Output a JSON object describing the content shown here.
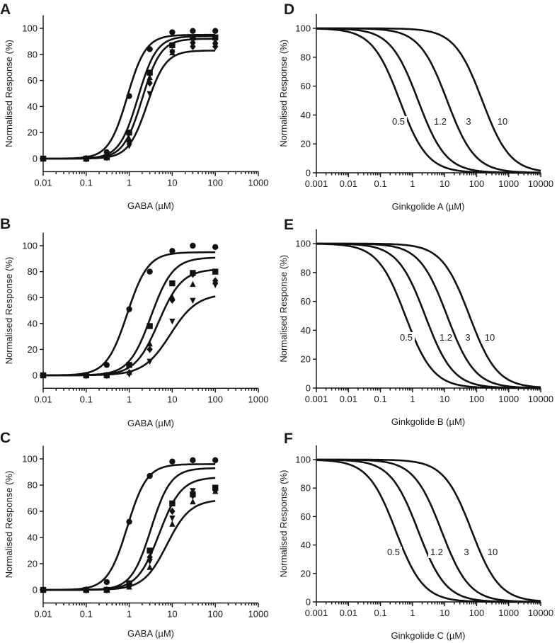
{
  "chart_data": [
    {
      "panel": "A",
      "type": "scatter",
      "xscale": "log",
      "xlabel": "GABA (µM)",
      "ylabel": "Normalised Response (%)",
      "xlim": [
        0.01,
        1000
      ],
      "ylim": [
        -10,
        110
      ],
      "xticks": [
        "0.01",
        "0.1",
        "1",
        "10",
        "100",
        "1000"
      ],
      "yticks": [
        "0",
        "20",
        "40",
        "60",
        "80",
        "100"
      ],
      "x": [
        0.01,
        0.1,
        0.3,
        1,
        3,
        10,
        30,
        100
      ],
      "series": [
        {
          "name": "circle",
          "marker": "circle",
          "values": [
            0,
            0,
            5,
            48,
            84,
            97,
            98,
            98
          ],
          "fit": {
            "ec50": 0.9,
            "hill": 2.0,
            "top": 95
          }
        },
        {
          "name": "square",
          "marker": "square",
          "values": [
            0,
            0,
            1,
            20,
            66,
            87,
            93,
            93
          ],
          "fit": {
            "ec50": 1.6,
            "hill": 2.0,
            "top": 94
          }
        },
        {
          "name": "triangle-up",
          "marker": "triangle-up",
          "values": [
            0,
            0,
            1,
            15,
            62,
            81,
            90,
            90
          ],
          "fit": {
            "ec50": 2.0,
            "hill": 2.0,
            "top": 92
          }
        },
        {
          "name": "triangle-down",
          "marker": "triangle-down",
          "values": [
            0,
            0,
            1,
            10,
            50,
            82,
            88,
            87
          ],
          "fit": {
            "ec50": 2.6,
            "hill": 2.0,
            "top": 83
          }
        },
        {
          "name": "diamond",
          "marker": "diamond",
          "values": [
            0,
            0,
            1,
            13,
            58,
            82,
            86,
            86
          ],
          "fit": null
        }
      ]
    },
    {
      "panel": "B",
      "type": "scatter",
      "xscale": "log",
      "xlabel": "GABA (µM)",
      "ylabel": "Normalised Response (%)",
      "xlim": [
        0.01,
        1000
      ],
      "ylim": [
        -10,
        110
      ],
      "xticks": [
        "0.01",
        "0.1",
        "1",
        "10",
        "100",
        "1000"
      ],
      "yticks": [
        "0",
        "20",
        "40",
        "60",
        "80",
        "100"
      ],
      "x": [
        0.01,
        0.1,
        0.3,
        1,
        3,
        10,
        30,
        100
      ],
      "series": [
        {
          "name": "circle",
          "marker": "circle",
          "values": [
            0,
            0,
            8,
            51,
            80,
            96,
            100,
            99
          ],
          "fit": {
            "ec50": 0.9,
            "hill": 1.8,
            "top": 95
          }
        },
        {
          "name": "square",
          "marker": "square",
          "values": [
            0,
            0,
            0,
            8,
            38,
            71,
            79,
            80
          ],
          "fit": {
            "ec50": 3.2,
            "hill": 1.7,
            "top": 91
          }
        },
        {
          "name": "triangle-up",
          "marker": "triangle-up",
          "values": [
            0,
            0,
            0,
            2,
            24,
            60,
            70,
            72
          ],
          "fit": {
            "ec50": 4.8,
            "hill": 1.6,
            "top": 82
          }
        },
        {
          "name": "triangle-down",
          "marker": "triangle-down",
          "values": [
            0,
            0,
            0,
            1,
            11,
            42,
            58,
            70
          ],
          "fit": {
            "ec50": 9,
            "hill": 1.4,
            "top": 63
          }
        },
        {
          "name": "diamond",
          "marker": "diamond",
          "values": [
            0,
            0,
            0,
            2,
            20,
            58,
            78,
            73
          ],
          "fit": null
        }
      ]
    },
    {
      "panel": "C",
      "type": "scatter",
      "xscale": "log",
      "xlabel": "GABA (µM)",
      "ylabel": "Normalised Response (%)",
      "xlim": [
        0.01,
        1000
      ],
      "ylim": [
        -10,
        110
      ],
      "xticks": [
        "0.01",
        "0.1",
        "1",
        "10",
        "100",
        "1000"
      ],
      "yticks": [
        "0",
        "20",
        "40",
        "60",
        "80",
        "100"
      ],
      "x": [
        0.01,
        0.1,
        0.3,
        1,
        3,
        10,
        30,
        100
      ],
      "series": [
        {
          "name": "circle",
          "marker": "circle",
          "values": [
            0,
            0,
            6,
            52,
            87,
            98,
            99,
            99
          ],
          "fit": {
            "ec50": 0.9,
            "hill": 1.9,
            "top": 96
          }
        },
        {
          "name": "square",
          "marker": "square",
          "values": [
            0,
            0,
            0,
            5,
            30,
            66,
            73,
            78
          ],
          "fit": {
            "ec50": 3.2,
            "hill": 1.9,
            "top": 93
          }
        },
        {
          "name": "triangle-up",
          "marker": "triangle-up",
          "values": [
            0,
            0,
            0,
            2,
            17,
            50,
            67,
            75
          ],
          "fit": {
            "ec50": 7.5,
            "hill": 1.6,
            "top": 69
          }
        },
        {
          "name": "triangle-down",
          "marker": "triangle-down",
          "values": [
            0,
            0,
            0,
            3,
            22,
            55,
            76,
            76
          ],
          "fit": {
            "ec50": 5,
            "hill": 1.7,
            "top": 86
          }
        },
        {
          "name": "diamond",
          "marker": "diamond",
          "values": [
            0,
            0,
            0,
            3,
            25,
            60,
            72,
            76
          ],
          "fit": null
        }
      ]
    },
    {
      "panel": "D",
      "type": "line",
      "xscale": "log",
      "xlabel": "Ginkgolide A (µM)",
      "ylabel": "Normalised Response (%)",
      "xlim": [
        0.001,
        10000
      ],
      "ylim": [
        0,
        110
      ],
      "xticks": [
        "0.001",
        "0.01",
        "0.1",
        "1",
        "10",
        "100",
        "1000",
        "10000"
      ],
      "yticks": [
        "0",
        "20",
        "40",
        "60",
        "80",
        "100"
      ],
      "series": [
        {
          "name": "0.5",
          "ic50": 0.4,
          "hill": 1.0
        },
        {
          "name": "1.2",
          "ic50": 1.5,
          "hill": 1.0
        },
        {
          "name": "3",
          "ic50": 12,
          "hill": 1.0
        },
        {
          "name": "10",
          "ic50": 150,
          "hill": 1.0
        }
      ]
    },
    {
      "panel": "E",
      "type": "line",
      "xscale": "log",
      "xlabel": "Ginkgolide B (µM)",
      "ylabel": "Normalised Response (%)",
      "xlim": [
        0.001,
        10000
      ],
      "ylim": [
        0,
        110
      ],
      "xticks": [
        "0.001",
        "0.01",
        "0.1",
        "1",
        "10",
        "100",
        "1000",
        "10000"
      ],
      "yticks": [
        "0",
        "20",
        "40",
        "60",
        "80",
        "100"
      ],
      "series": [
        {
          "name": "0.5",
          "ic50": 0.6,
          "hill": 1.0
        },
        {
          "name": "1.2",
          "ic50": 2.5,
          "hill": 1.0
        },
        {
          "name": "3",
          "ic50": 12,
          "hill": 1.0
        },
        {
          "name": "10",
          "ic50": 60,
          "hill": 1.0
        }
      ]
    },
    {
      "panel": "F",
      "type": "line",
      "xscale": "log",
      "xlabel": "Ginkgolide C (µM)",
      "ylabel": "Normalised Response (%)",
      "xlim": [
        0.001,
        10000
      ],
      "ylim": [
        0,
        110
      ],
      "xticks": [
        "0.001",
        "0.01",
        "0.1",
        "1",
        "10",
        "100",
        "1000",
        "10000"
      ],
      "yticks": [
        "0",
        "20",
        "40",
        "60",
        "80",
        "100"
      ],
      "series": [
        {
          "name": "0.5",
          "ic50": 0.3,
          "hill": 1.0
        },
        {
          "name": "1.2",
          "ic50": 1.5,
          "hill": 1.0
        },
        {
          "name": "3",
          "ic50": 8,
          "hill": 1.0
        },
        {
          "name": "10",
          "ic50": 70,
          "hill": 1.0
        }
      ]
    }
  ]
}
